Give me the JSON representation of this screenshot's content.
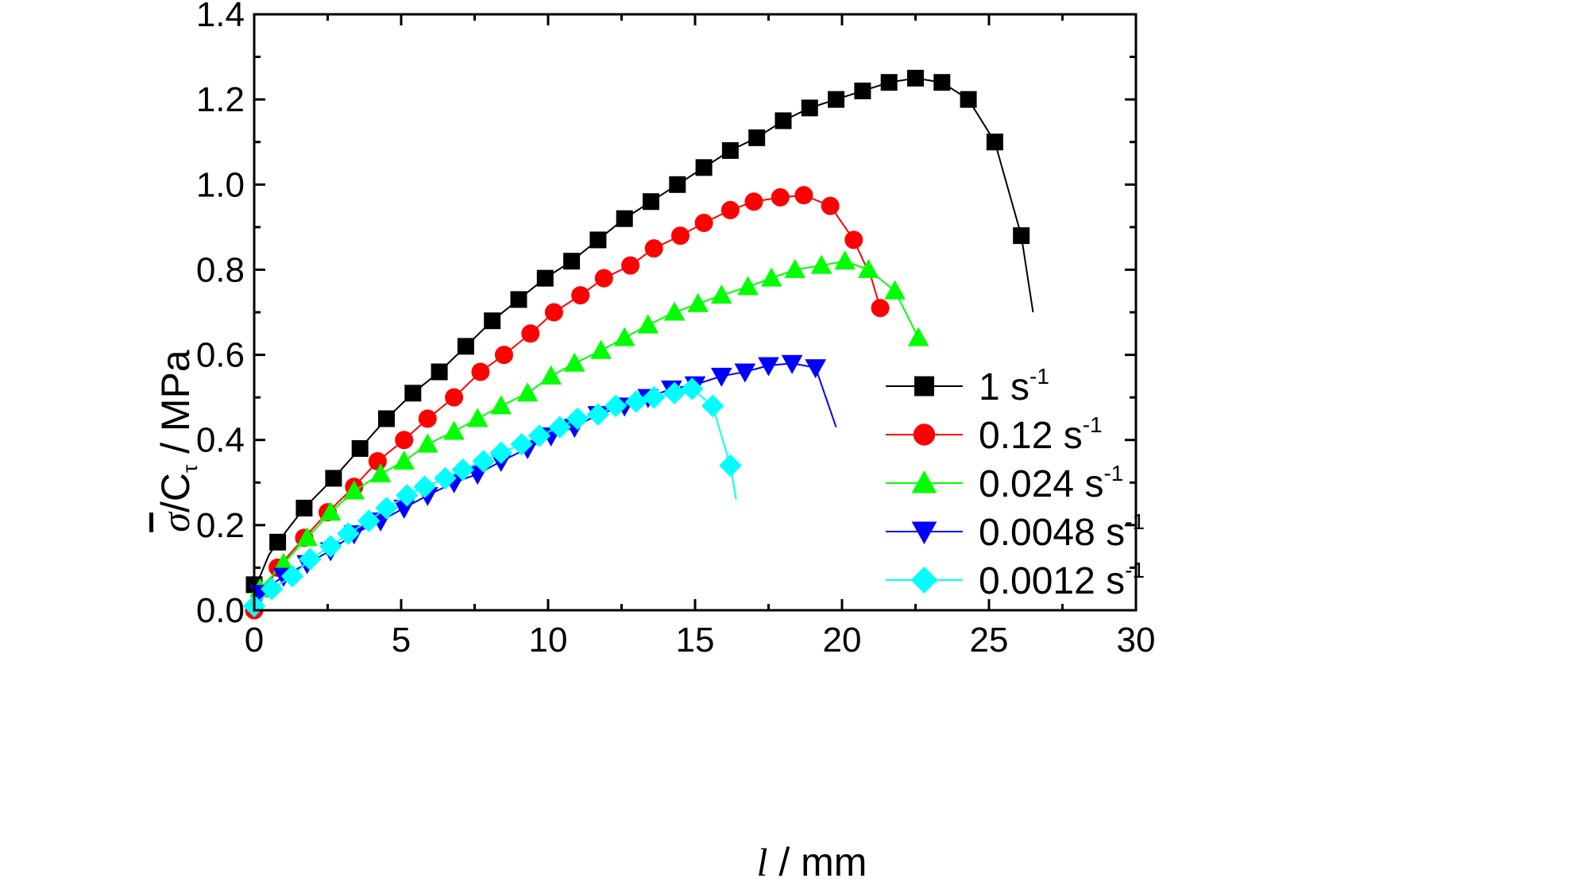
{
  "chart_data": {
    "type": "line",
    "xlabel": {
      "var": "l",
      "unit": " / mm"
    },
    "ylabel": {
      "sigma": "σ",
      "c": "/C",
      "sub": "τ",
      "unit": " / MPa"
    },
    "xlim": [
      0,
      30
    ],
    "ylim": [
      0,
      1.4
    ],
    "xticks": [
      0,
      5,
      10,
      15,
      20,
      25,
      30
    ],
    "yticks": [
      0.0,
      0.2,
      0.4,
      0.6,
      0.8,
      1.0,
      1.2,
      1.4
    ],
    "xtick_labels": [
      "0",
      "5",
      "10",
      "15",
      "20",
      "25",
      "30"
    ],
    "ytick_labels": [
      "0.0",
      "0.2",
      "0.4",
      "0.6",
      "0.8",
      "1.0",
      "1.2",
      "1.4"
    ],
    "grid": false,
    "legend_position": "bottom-right",
    "series": [
      {
        "name": "1 s",
        "sup": "-1",
        "color": "#000000",
        "marker": "square",
        "x": [
          0.0,
          0.8,
          1.7,
          2.7,
          3.6,
          4.5,
          5.4,
          6.3,
          7.2,
          8.1,
          9.0,
          9.9,
          10.8,
          11.7,
          12.6,
          13.5,
          14.4,
          15.3,
          16.2,
          17.1,
          18.0,
          18.9,
          19.8,
          20.7,
          21.6,
          22.5,
          23.4,
          24.3,
          25.2,
          26.1
        ],
        "y": [
          0.06,
          0.16,
          0.24,
          0.31,
          0.38,
          0.45,
          0.51,
          0.56,
          0.62,
          0.68,
          0.73,
          0.78,
          0.82,
          0.87,
          0.92,
          0.96,
          1.0,
          1.04,
          1.08,
          1.11,
          1.15,
          1.18,
          1.2,
          1.22,
          1.24,
          1.25,
          1.24,
          1.2,
          1.1,
          0.88
        ],
        "line_x": [
          0.0,
          0.2,
          0.5,
          0.8,
          1.7,
          2.7,
          3.6,
          4.5,
          5.4,
          6.3,
          7.2,
          8.1,
          9.0,
          9.9,
          10.8,
          11.7,
          12.6,
          13.5,
          14.4,
          15.3,
          16.2,
          17.1,
          18.0,
          18.9,
          19.8,
          20.7,
          21.6,
          22.5,
          23.4,
          24.3,
          25.2,
          26.1,
          26.5
        ],
        "line_y": [
          0.0,
          0.08,
          0.13,
          0.16,
          0.24,
          0.31,
          0.38,
          0.45,
          0.51,
          0.56,
          0.62,
          0.68,
          0.73,
          0.78,
          0.82,
          0.87,
          0.92,
          0.96,
          1.0,
          1.04,
          1.08,
          1.11,
          1.15,
          1.18,
          1.2,
          1.22,
          1.24,
          1.25,
          1.24,
          1.2,
          1.1,
          0.88,
          0.7
        ]
      },
      {
        "name": "0.12 s",
        "sup": "-1",
        "color": "#ff0000",
        "marker": "circle",
        "x": [
          0.0,
          0.8,
          1.7,
          2.5,
          3.4,
          4.2,
          5.1,
          5.9,
          6.8,
          7.7,
          8.5,
          9.4,
          10.2,
          11.1,
          11.9,
          12.8,
          13.6,
          14.5,
          15.3,
          16.2,
          17.0,
          17.9,
          18.7,
          19.6,
          20.4,
          21.3
        ],
        "y": [
          0.0,
          0.1,
          0.17,
          0.23,
          0.29,
          0.35,
          0.4,
          0.45,
          0.5,
          0.56,
          0.6,
          0.65,
          0.7,
          0.74,
          0.78,
          0.81,
          0.85,
          0.88,
          0.91,
          0.94,
          0.96,
          0.97,
          0.975,
          0.95,
          0.87,
          0.71
        ],
        "line_x": [
          0.0,
          0.8,
          1.7,
          2.5,
          3.4,
          4.2,
          5.1,
          5.9,
          6.8,
          7.7,
          8.5,
          9.4,
          10.2,
          11.1,
          11.9,
          12.8,
          13.6,
          14.5,
          15.3,
          16.2,
          17.0,
          17.9,
          18.7,
          19.6,
          20.4,
          21.0,
          21.3,
          21.6
        ],
        "line_y": [
          0.0,
          0.1,
          0.17,
          0.23,
          0.29,
          0.35,
          0.4,
          0.45,
          0.5,
          0.56,
          0.6,
          0.65,
          0.7,
          0.74,
          0.78,
          0.81,
          0.85,
          0.88,
          0.91,
          0.94,
          0.96,
          0.97,
          0.975,
          0.95,
          0.87,
          0.78,
          0.71,
          0.71
        ]
      },
      {
        "name": "0.024 s",
        "sup": "-1",
        "color": "#00ff00",
        "marker": "triangle-up",
        "x": [
          0.2,
          1.0,
          1.8,
          2.6,
          3.4,
          4.3,
          5.1,
          5.9,
          6.8,
          7.6,
          8.4,
          9.3,
          10.1,
          10.9,
          11.8,
          12.6,
          13.4,
          14.3,
          15.1,
          15.9,
          16.8,
          17.6,
          18.4,
          19.3,
          20.1,
          20.9,
          21.8,
          22.6
        ],
        "y": [
          0.05,
          0.11,
          0.17,
          0.23,
          0.28,
          0.32,
          0.35,
          0.39,
          0.42,
          0.45,
          0.48,
          0.51,
          0.55,
          0.58,
          0.61,
          0.64,
          0.67,
          0.7,
          0.72,
          0.74,
          0.76,
          0.78,
          0.8,
          0.81,
          0.82,
          0.8,
          0.75,
          0.64
        ],
        "line_x": [
          0.0,
          0.2,
          1.0,
          1.8,
          2.6,
          3.4,
          4.3,
          5.1,
          5.9,
          6.8,
          7.6,
          8.4,
          9.3,
          10.1,
          10.9,
          11.8,
          12.6,
          13.4,
          14.3,
          15.1,
          15.9,
          16.8,
          17.6,
          18.4,
          19.3,
          20.1,
          20.9,
          21.8,
          22.6
        ],
        "line_y": [
          0.0,
          0.05,
          0.11,
          0.17,
          0.23,
          0.28,
          0.32,
          0.35,
          0.39,
          0.42,
          0.45,
          0.48,
          0.51,
          0.55,
          0.58,
          0.61,
          0.64,
          0.67,
          0.7,
          0.72,
          0.74,
          0.76,
          0.78,
          0.8,
          0.81,
          0.82,
          0.8,
          0.75,
          0.64
        ]
      },
      {
        "name": "0.0048 s",
        "sup": "-1",
        "color": "#0000ff",
        "marker": "triangle-down",
        "x": [
          0.2,
          1.0,
          1.8,
          2.6,
          3.4,
          4.3,
          5.1,
          5.9,
          6.8,
          7.6,
          8.4,
          9.3,
          10.1,
          10.9,
          11.7,
          12.6,
          13.4,
          14.2,
          15.0,
          15.9,
          16.7,
          17.5,
          18.3,
          19.1
        ],
        "y": [
          0.04,
          0.08,
          0.11,
          0.14,
          0.18,
          0.21,
          0.24,
          0.27,
          0.3,
          0.32,
          0.35,
          0.38,
          0.41,
          0.43,
          0.46,
          0.48,
          0.5,
          0.52,
          0.53,
          0.55,
          0.56,
          0.575,
          0.58,
          0.57
        ],
        "line_x": [
          0.0,
          0.2,
          1.0,
          1.8,
          2.6,
          3.4,
          4.3,
          5.1,
          5.9,
          6.8,
          7.6,
          8.4,
          9.3,
          10.1,
          10.9,
          11.7,
          12.6,
          13.4,
          14.2,
          15.0,
          15.9,
          16.7,
          17.5,
          18.3,
          19.1,
          19.5,
          19.8
        ],
        "line_y": [
          0.0,
          0.04,
          0.08,
          0.11,
          0.14,
          0.18,
          0.21,
          0.24,
          0.27,
          0.3,
          0.32,
          0.35,
          0.38,
          0.41,
          0.43,
          0.46,
          0.48,
          0.5,
          0.52,
          0.53,
          0.55,
          0.56,
          0.575,
          0.58,
          0.57,
          0.49,
          0.43
        ]
      },
      {
        "name": "0.0012 s",
        "sup": "-1",
        "color": "#00ffff",
        "marker": "diamond",
        "x": [
          0.0,
          0.6,
          1.3,
          1.9,
          2.6,
          3.2,
          3.9,
          4.5,
          5.2,
          5.8,
          6.5,
          7.1,
          7.8,
          8.4,
          9.1,
          9.7,
          10.4,
          11.0,
          11.7,
          12.3,
          13.0,
          13.6,
          14.3,
          14.9,
          15.6,
          16.2
        ],
        "y": [
          0.01,
          0.05,
          0.08,
          0.12,
          0.15,
          0.18,
          0.21,
          0.24,
          0.27,
          0.29,
          0.31,
          0.33,
          0.35,
          0.37,
          0.39,
          0.41,
          0.43,
          0.45,
          0.46,
          0.48,
          0.49,
          0.5,
          0.51,
          0.52,
          0.48,
          0.34
        ],
        "line_x": [
          0.0,
          0.6,
          1.3,
          1.9,
          2.6,
          3.2,
          3.9,
          4.5,
          5.2,
          5.8,
          6.5,
          7.1,
          7.8,
          8.4,
          9.1,
          9.7,
          10.4,
          11.0,
          11.7,
          12.3,
          13.0,
          13.6,
          14.3,
          14.9,
          15.6,
          16.2,
          16.4
        ],
        "line_y": [
          0.01,
          0.05,
          0.08,
          0.12,
          0.15,
          0.18,
          0.21,
          0.24,
          0.27,
          0.29,
          0.31,
          0.33,
          0.35,
          0.37,
          0.39,
          0.41,
          0.43,
          0.45,
          0.46,
          0.48,
          0.49,
          0.5,
          0.51,
          0.52,
          0.48,
          0.34,
          0.26
        ]
      }
    ]
  }
}
